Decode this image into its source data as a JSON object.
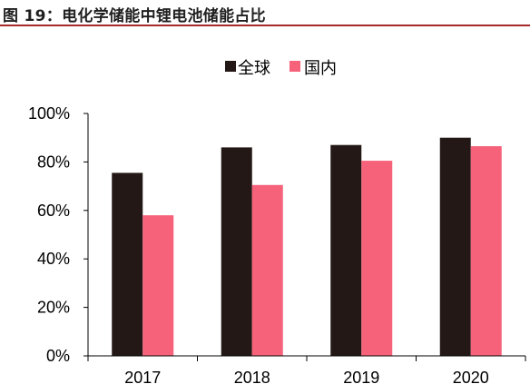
{
  "figure": {
    "title": "图 19：电化学储能中锂电池储能占比"
  },
  "chart_data": {
    "type": "bar",
    "title": "",
    "xlabel": "",
    "ylabel": "",
    "categories": [
      "2017",
      "2018",
      "2019",
      "2020"
    ],
    "series": [
      {
        "name": "全球",
        "color": "#231815",
        "values": [
          75.5,
          86,
          87,
          90
        ]
      },
      {
        "name": "国内",
        "color": "#f5627a",
        "values": [
          58,
          70.5,
          80.5,
          86.5
        ]
      }
    ],
    "ylim": [
      0,
      100
    ],
    "yticks": [
      "0%",
      "20%",
      "40%",
      "60%",
      "80%",
      "100%"
    ],
    "ytick_values": [
      0,
      20,
      40,
      60,
      80,
      100
    ],
    "legend_position": "top-center",
    "grid": false
  }
}
